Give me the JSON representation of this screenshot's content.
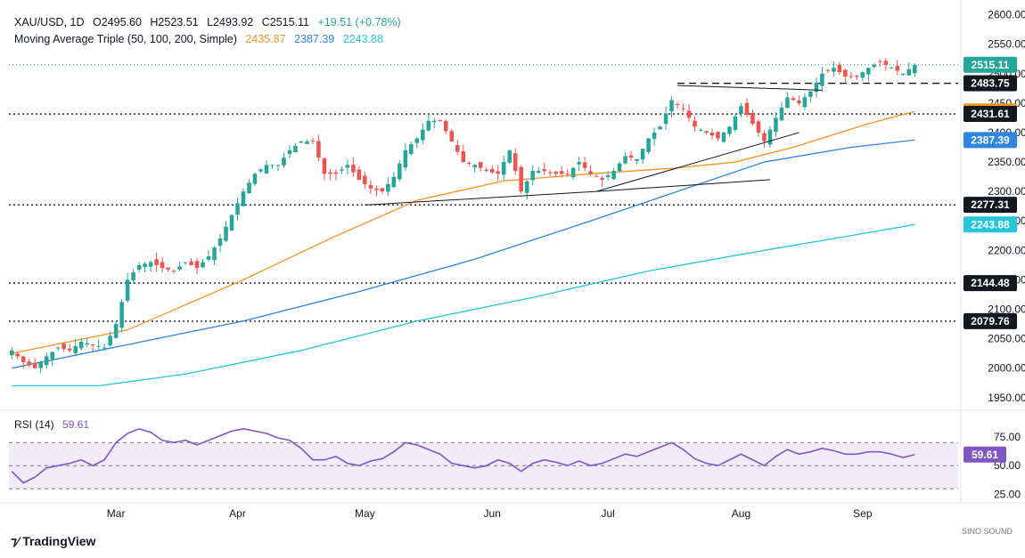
{
  "header": {
    "symbol": "XAU/USD, 1D",
    "open": "O2495.60",
    "high": "H2523.51",
    "low": "L2493.92",
    "close": "C2515.11",
    "change": "+19.51 (+0.78%)",
    "ma_label": "Moving Average Triple (50, 100, 200, Simple)",
    "ma50": "2435.87",
    "ma100": "2387.39",
    "ma200": "2243.88"
  },
  "rsi_header": {
    "label": "RSI (14)",
    "value": "59.61"
  },
  "branding": {
    "name": "TradingView",
    "logo": "SINO SOUND"
  },
  "colors": {
    "up": "#26a69a",
    "down": "#ef5350",
    "ma50": "#f7931e",
    "ma100": "#2e86de",
    "ma200": "#26c6da",
    "rsi": "#7e57c2",
    "price_tag": "#26a69a",
    "dark_tag": "#131722"
  },
  "chart_data": {
    "type": "candlestick",
    "title": "XAU/USD, 1D",
    "y_ticks": [
      "2600.00",
      "2550.00",
      "2500.00",
      "2450.00",
      "2400.00",
      "2350.00",
      "2300.00",
      "2250.00",
      "2200.00",
      "2150.00",
      "2100.00",
      "2050.00",
      "2000.00",
      "1950.00"
    ],
    "ylim": [
      1930,
      2610
    ],
    "x_labels": [
      {
        "label": "Mar",
        "index": 18
      },
      {
        "label": "Apr",
        "index": 39
      },
      {
        "label": "May",
        "index": 61
      },
      {
        "label": "Jun",
        "index": 83
      },
      {
        "label": "Jul",
        "index": 103
      },
      {
        "label": "Aug",
        "index": 126
      },
      {
        "label": "Sep",
        "index": 147
      }
    ],
    "n_bars": 164,
    "price_tags": [
      {
        "label": "2515.11",
        "value": 2515.11,
        "style": "up"
      },
      {
        "label": "2483.75",
        "value": 2483.75,
        "style": "dark"
      },
      {
        "label": "2435.87",
        "value": 2435.87,
        "style": "ma50"
      },
      {
        "label": "2431.61",
        "value": 2431.61,
        "style": "dark"
      },
      {
        "label": "2387.39",
        "value": 2387.39,
        "style": "ma100"
      },
      {
        "label": "2277.31",
        "value": 2277.31,
        "style": "dark"
      },
      {
        "label": "2243.88",
        "value": 2243.88,
        "style": "ma200"
      },
      {
        "label": "2144.48",
        "value": 2144.48,
        "style": "dark"
      },
      {
        "label": "2079.76",
        "value": 2079.76,
        "style": "dark"
      }
    ],
    "horizontal_levels": [
      2431.61,
      2277.31,
      2144.48,
      2079.76
    ],
    "dashed_level": 2483.75,
    "trendlines": [
      {
        "from": [
          61,
          2277
        ],
        "to": [
          101,
          2300
        ]
      },
      {
        "from": [
          101,
          2300
        ],
        "to": [
          131,
          2320
        ]
      },
      {
        "from": [
          101,
          2300
        ],
        "to": [
          136,
          2400
        ]
      },
      {
        "from": [
          115,
          2480
        ],
        "to": [
          140,
          2472
        ]
      }
    ],
    "close_path": [
      [
        0,
        2030
      ],
      [
        2,
        2010
      ],
      [
        4,
        2000
      ],
      [
        6,
        2020
      ],
      [
        8,
        2035
      ],
      [
        10,
        2030
      ],
      [
        12,
        2045
      ],
      [
        14,
        2040
      ],
      [
        16,
        2035
      ],
      [
        18,
        2075
      ],
      [
        20,
        2150
      ],
      [
        22,
        2175
      ],
      [
        24,
        2180
      ],
      [
        26,
        2170
      ],
      [
        28,
        2165
      ],
      [
        30,
        2180
      ],
      [
        32,
        2170
      ],
      [
        34,
        2190
      ],
      [
        36,
        2220
      ],
      [
        38,
        2260
      ],
      [
        40,
        2300
      ],
      [
        42,
        2330
      ],
      [
        44,
        2345
      ],
      [
        46,
        2345
      ],
      [
        48,
        2370
      ],
      [
        50,
        2385
      ],
      [
        52,
        2385
      ],
      [
        54,
        2330
      ],
      [
        56,
        2330
      ],
      [
        58,
        2345
      ],
      [
        60,
        2320
      ],
      [
        62,
        2305
      ],
      [
        64,
        2300
      ],
      [
        66,
        2325
      ],
      [
        68,
        2370
      ],
      [
        70,
        2390
      ],
      [
        72,
        2420
      ],
      [
        74,
        2420
      ],
      [
        76,
        2385
      ],
      [
        78,
        2350
      ],
      [
        80,
        2345
      ],
      [
        82,
        2335
      ],
      [
        84,
        2330
      ],
      [
        86,
        2370
      ],
      [
        88,
        2300
      ],
      [
        90,
        2335
      ],
      [
        92,
        2335
      ],
      [
        94,
        2330
      ],
      [
        96,
        2330
      ],
      [
        98,
        2350
      ],
      [
        100,
        2330
      ],
      [
        102,
        2320
      ],
      [
        104,
        2335
      ],
      [
        106,
        2360
      ],
      [
        108,
        2355
      ],
      [
        110,
        2390
      ],
      [
        112,
        2410
      ],
      [
        114,
        2455
      ],
      [
        116,
        2440
      ],
      [
        118,
        2410
      ],
      [
        120,
        2400
      ],
      [
        122,
        2390
      ],
      [
        124,
        2410
      ],
      [
        126,
        2445
      ],
      [
        128,
        2415
      ],
      [
        130,
        2385
      ],
      [
        132,
        2425
      ],
      [
        134,
        2460
      ],
      [
        136,
        2450
      ],
      [
        138,
        2470
      ],
      [
        140,
        2500
      ],
      [
        142,
        2510
      ],
      [
        144,
        2495
      ],
      [
        146,
        2495
      ],
      [
        148,
        2510
      ],
      [
        150,
        2520
      ],
      [
        152,
        2510
      ],
      [
        154,
        2500
      ],
      [
        156,
        2515
      ]
    ],
    "series": [
      {
        "name": "Moving Average 50",
        "points": [
          [
            0,
            2025
          ],
          [
            20,
            2065
          ],
          [
            40,
            2150
          ],
          [
            55,
            2220
          ],
          [
            70,
            2285
          ],
          [
            85,
            2318
          ],
          [
            100,
            2330
          ],
          [
            115,
            2340
          ],
          [
            125,
            2350
          ],
          [
            135,
            2375
          ],
          [
            148,
            2415
          ],
          [
            156,
            2435.87
          ]
        ]
      },
      {
        "name": "Moving Average 100",
        "points": [
          [
            0,
            2000
          ],
          [
            20,
            2040
          ],
          [
            40,
            2080
          ],
          [
            60,
            2130
          ],
          [
            80,
            2185
          ],
          [
            100,
            2250
          ],
          [
            115,
            2300
          ],
          [
            130,
            2350
          ],
          [
            145,
            2375
          ],
          [
            156,
            2387.39
          ]
        ]
      },
      {
        "name": "Moving Average 200",
        "points": [
          [
            0,
            1970
          ],
          [
            15,
            1970
          ],
          [
            30,
            1990
          ],
          [
            50,
            2030
          ],
          [
            70,
            2080
          ],
          [
            90,
            2120
          ],
          [
            110,
            2165
          ],
          [
            130,
            2200
          ],
          [
            145,
            2225
          ],
          [
            156,
            2243.88
          ]
        ]
      }
    ],
    "rsi": {
      "name": "RSI (14)",
      "value": 59.61,
      "levels": [
        70,
        50,
        30
      ],
      "ticks": [
        "75.00",
        "50.00",
        "25.00"
      ],
      "ylim": [
        20,
        95
      ],
      "points": [
        [
          0,
          45
        ],
        [
          2,
          35
        ],
        [
          4,
          40
        ],
        [
          6,
          48
        ],
        [
          8,
          50
        ],
        [
          10,
          52
        ],
        [
          12,
          55
        ],
        [
          14,
          50
        ],
        [
          16,
          55
        ],
        [
          18,
          70
        ],
        [
          20,
          78
        ],
        [
          22,
          82
        ],
        [
          24,
          79
        ],
        [
          26,
          72
        ],
        [
          28,
          70
        ],
        [
          30,
          72
        ],
        [
          32,
          68
        ],
        [
          34,
          72
        ],
        [
          36,
          76
        ],
        [
          38,
          80
        ],
        [
          40,
          82
        ],
        [
          42,
          80
        ],
        [
          44,
          78
        ],
        [
          46,
          74
        ],
        [
          48,
          72
        ],
        [
          50,
          65
        ],
        [
          52,
          55
        ],
        [
          54,
          55
        ],
        [
          56,
          58
        ],
        [
          58,
          52
        ],
        [
          60,
          50
        ],
        [
          62,
          54
        ],
        [
          64,
          56
        ],
        [
          66,
          62
        ],
        [
          68,
          70
        ],
        [
          70,
          68
        ],
        [
          72,
          64
        ],
        [
          74,
          60
        ],
        [
          76,
          52
        ],
        [
          78,
          50
        ],
        [
          80,
          48
        ],
        [
          82,
          50
        ],
        [
          84,
          55
        ],
        [
          86,
          52
        ],
        [
          88,
          45
        ],
        [
          90,
          52
        ],
        [
          92,
          55
        ],
        [
          94,
          53
        ],
        [
          96,
          50
        ],
        [
          98,
          54
        ],
        [
          100,
          50
        ],
        [
          102,
          52
        ],
        [
          104,
          56
        ],
        [
          106,
          60
        ],
        [
          108,
          58
        ],
        [
          110,
          62
        ],
        [
          112,
          66
        ],
        [
          114,
          70
        ],
        [
          116,
          64
        ],
        [
          118,
          56
        ],
        [
          120,
          52
        ],
        [
          122,
          50
        ],
        [
          124,
          55
        ],
        [
          126,
          60
        ],
        [
          128,
          55
        ],
        [
          130,
          50
        ],
        [
          132,
          58
        ],
        [
          134,
          64
        ],
        [
          136,
          60
        ],
        [
          138,
          62
        ],
        [
          140,
          65
        ],
        [
          142,
          63
        ],
        [
          144,
          60
        ],
        [
          146,
          60
        ],
        [
          148,
          62
        ],
        [
          150,
          62
        ],
        [
          152,
          60
        ],
        [
          154,
          57
        ],
        [
          156,
          59.61
        ]
      ]
    }
  }
}
